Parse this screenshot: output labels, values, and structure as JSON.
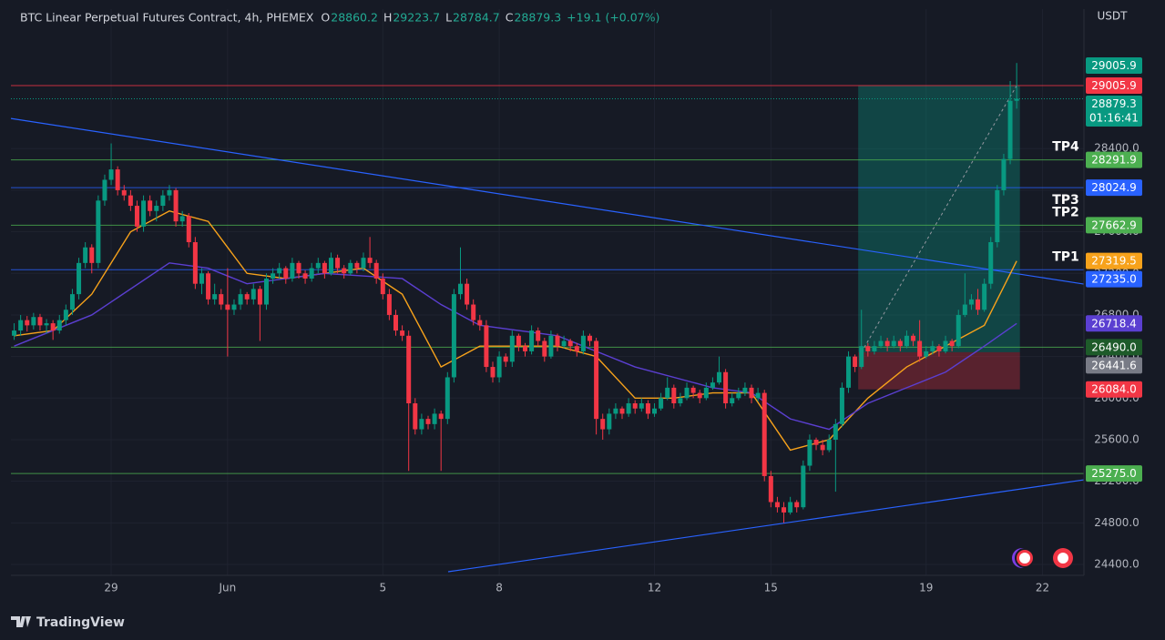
{
  "chart_data": {
    "type": "candlestick",
    "title": "BTC Linear Perpetual Futures Contract, 4h, PHEMEX",
    "ohlc_labels": [
      "O",
      "H",
      "L",
      "C"
    ],
    "change_label": "+19.1 (+0.07%)",
    "currency": "USDT",
    "countdown": "01:16:41",
    "brand": "TradingView",
    "up_color": "#089981",
    "down_color": "#f23645",
    "grid": true,
    "xlim": [
      -0.5,
      165.4
    ],
    "xticks": [
      {
        "value": 15,
        "label": "29"
      },
      {
        "value": 33,
        "label": "Jun"
      },
      {
        "value": 57,
        "label": "5"
      },
      {
        "value": 75,
        "label": "8"
      },
      {
        "value": 99,
        "label": "12"
      },
      {
        "value": 117,
        "label": "15"
      },
      {
        "value": 141,
        "label": "19"
      },
      {
        "value": 159,
        "label": "22"
      }
    ],
    "ylim": [
      24295,
      29742
    ],
    "yticks": [
      {
        "value": 24400,
        "label": "24400.0"
      },
      {
        "value": 24800,
        "label": "24800.0"
      },
      {
        "value": 25200,
        "label": "25200.0"
      },
      {
        "value": 25600,
        "label": "25600.0"
      },
      {
        "value": 26000,
        "label": "26000.0"
      },
      {
        "value": 26400,
        "label": "26400.0"
      },
      {
        "value": 26800,
        "label": "26800.0"
      },
      {
        "value": 27200,
        "label": "27200.0"
      },
      {
        "value": 27600,
        "label": "27600.0"
      },
      {
        "value": 28000,
        "label": "28000.0"
      },
      {
        "value": 28400,
        "label": "28400.0"
      }
    ],
    "candles": [
      [
        26600,
        26720,
        26560,
        26650
      ],
      [
        26650,
        26800,
        26600,
        26750
      ],
      [
        26750,
        26790,
        26640,
        26700
      ],
      [
        26700,
        26820,
        26660,
        26780
      ],
      [
        26780,
        26810,
        26650,
        26700
      ],
      [
        26700,
        26760,
        26620,
        26720
      ],
      [
        26720,
        26750,
        26560,
        26650
      ],
      [
        26650,
        26800,
        26620,
        26750
      ],
      [
        26750,
        26900,
        26700,
        26850
      ],
      [
        26850,
        27050,
        26800,
        27000
      ],
      [
        27000,
        27350,
        26950,
        27300
      ],
      [
        27300,
        27500,
        27250,
        27450
      ],
      [
        27450,
        27480,
        27200,
        27300
      ],
      [
        27300,
        27950,
        27250,
        27900
      ],
      [
        27900,
        28150,
        27850,
        28100
      ],
      [
        28100,
        28450,
        28050,
        28200
      ],
      [
        28200,
        28230,
        27950,
        28000
      ],
      [
        28000,
        28050,
        27900,
        27950
      ],
      [
        27950,
        28000,
        27800,
        27850
      ],
      [
        27850,
        27900,
        27600,
        27650
      ],
      [
        27650,
        27950,
        27600,
        27900
      ],
      [
        27900,
        27950,
        27750,
        27800
      ],
      [
        27800,
        27900,
        27700,
        27850
      ],
      [
        27850,
        28000,
        27800,
        27950
      ],
      [
        27950,
        28050,
        27900,
        28000
      ],
      [
        28000,
        28020,
        27650,
        27700
      ],
      [
        27700,
        27800,
        27650,
        27750
      ],
      [
        27750,
        27780,
        27450,
        27500
      ],
      [
        27500,
        27550,
        27050,
        27100
      ],
      [
        27100,
        27250,
        27000,
        27200
      ],
      [
        27200,
        27220,
        26900,
        26950
      ],
      [
        26950,
        27100,
        26900,
        27000
      ],
      [
        27000,
        27050,
        26850,
        26900
      ],
      [
        26900,
        27250,
        26400,
        26850
      ],
      [
        26850,
        26950,
        26800,
        26900
      ],
      [
        26900,
        27050,
        26850,
        27000
      ],
      [
        27000,
        27020,
        26900,
        26950
      ],
      [
        26950,
        27100,
        26900,
        27050
      ],
      [
        27050,
        27080,
        26550,
        26900
      ],
      [
        26900,
        27200,
        26850,
        27150
      ],
      [
        27150,
        27250,
        27100,
        27200
      ],
      [
        27200,
        27300,
        27150,
        27250
      ],
      [
        27250,
        27270,
        27100,
        27150
      ],
      [
        27150,
        27350,
        27120,
        27300
      ],
      [
        27300,
        27320,
        27150,
        27200
      ],
      [
        27200,
        27230,
        27100,
        27150
      ],
      [
        27150,
        27300,
        27120,
        27250
      ],
      [
        27250,
        27350,
        27200,
        27300
      ],
      [
        27300,
        27320,
        27150,
        27200
      ],
      [
        27200,
        27400,
        27180,
        27350
      ],
      [
        27350,
        27380,
        27200,
        27250
      ],
      [
        27250,
        27280,
        27150,
        27200
      ],
      [
        27200,
        27330,
        27180,
        27300
      ],
      [
        27300,
        27320,
        27200,
        27250
      ],
      [
        27250,
        27400,
        27220,
        27350
      ],
      [
        27350,
        27550,
        27250,
        27300
      ],
      [
        27300,
        27330,
        27100,
        27150
      ],
      [
        27150,
        27200,
        26950,
        27000
      ],
      [
        27000,
        27050,
        26750,
        26800
      ],
      [
        26800,
        26850,
        26600,
        26650
      ],
      [
        26650,
        26700,
        26550,
        26600
      ],
      [
        26600,
        26650,
        25300,
        25950
      ],
      [
        25950,
        26000,
        25650,
        25700
      ],
      [
        25700,
        25850,
        25650,
        25800
      ],
      [
        25800,
        25830,
        25700,
        25750
      ],
      [
        25750,
        25900,
        25700,
        25850
      ],
      [
        25850,
        25880,
        25300,
        25800
      ],
      [
        25800,
        26250,
        25750,
        26200
      ],
      [
        26200,
        27050,
        26150,
        27000
      ],
      [
        27000,
        27450,
        26950,
        27100
      ],
      [
        27100,
        27150,
        26850,
        26900
      ],
      [
        26900,
        26950,
        26700,
        26750
      ],
      [
        26750,
        26800,
        26650,
        26700
      ],
      [
        26700,
        26750,
        26250,
        26300
      ],
      [
        26300,
        26350,
        26150,
        26200
      ],
      [
        26200,
        26450,
        26150,
        26400
      ],
      [
        26400,
        26430,
        26300,
        26350
      ],
      [
        26350,
        26650,
        26300,
        26600
      ],
      [
        26600,
        26620,
        26450,
        26500
      ],
      [
        26500,
        26530,
        26400,
        26450
      ],
      [
        26450,
        26700,
        26420,
        26650
      ],
      [
        26650,
        26680,
        26500,
        26550
      ],
      [
        26550,
        26580,
        26350,
        26400
      ],
      [
        26400,
        26650,
        26380,
        26600
      ],
      [
        26600,
        26620,
        26450,
        26500
      ],
      [
        26500,
        26600,
        26480,
        26550
      ],
      [
        26550,
        26570,
        26450,
        26500
      ],
      [
        26500,
        26530,
        26400,
        26450
      ],
      [
        26450,
        26650,
        26420,
        26600
      ],
      [
        26600,
        26620,
        26500,
        26550
      ],
      [
        26550,
        26580,
        25650,
        25800
      ],
      [
        25800,
        25850,
        25600,
        25700
      ],
      [
        25700,
        25900,
        25650,
        25850
      ],
      [
        25850,
        25950,
        25800,
        25900
      ],
      [
        25900,
        25920,
        25800,
        25850
      ],
      [
        25850,
        26000,
        25820,
        25950
      ],
      [
        25950,
        25980,
        25850,
        25900
      ],
      [
        25900,
        26000,
        25870,
        25950
      ],
      [
        25950,
        25980,
        25800,
        25850
      ],
      [
        25850,
        25950,
        25820,
        25900
      ],
      [
        25900,
        26050,
        25880,
        26000
      ],
      [
        26000,
        26200,
        25980,
        26100
      ],
      [
        26100,
        26130,
        25900,
        25950
      ],
      [
        25950,
        26050,
        25920,
        26000
      ],
      [
        26000,
        26150,
        25980,
        26100
      ],
      [
        26100,
        26120,
        26000,
        26050
      ],
      [
        26050,
        26080,
        25950,
        26000
      ],
      [
        26000,
        26150,
        25980,
        26100
      ],
      [
        26100,
        26200,
        26080,
        26150
      ],
      [
        26150,
        26400,
        26130,
        26250
      ],
      [
        26250,
        26280,
        25900,
        25950
      ],
      [
        25950,
        26050,
        25920,
        26000
      ],
      [
        26000,
        26100,
        25980,
        26050
      ],
      [
        26050,
        26150,
        26020,
        26100
      ],
      [
        26100,
        26130,
        25950,
        26000
      ],
      [
        26000,
        26100,
        25970,
        26050
      ],
      [
        26050,
        26080,
        25200,
        25250
      ],
      [
        25250,
        25300,
        24950,
        25000
      ],
      [
        25000,
        25050,
        24900,
        24950
      ],
      [
        24950,
        25000,
        24800,
        24900
      ],
      [
        24900,
        25050,
        24880,
        25000
      ],
      [
        25000,
        25020,
        24900,
        24950
      ],
      [
        24950,
        25400,
        24930,
        25350
      ],
      [
        25350,
        25650,
        25300,
        25600
      ],
      [
        25600,
        25620,
        25500,
        25550
      ],
      [
        25550,
        25600,
        25450,
        25500
      ],
      [
        25500,
        25650,
        25480,
        25600
      ],
      [
        25600,
        25800,
        25100,
        25750
      ],
      [
        25750,
        26150,
        25720,
        26100
      ],
      [
        26100,
        26450,
        26050,
        26400
      ],
      [
        26400,
        26420,
        26250,
        26300
      ],
      [
        26300,
        26850,
        26280,
        26500
      ],
      [
        26500,
        26530,
        26400,
        26450
      ],
      [
        26450,
        26550,
        26420,
        26500
      ],
      [
        26500,
        26600,
        26480,
        26550
      ],
      [
        26550,
        26580,
        26450,
        26500
      ],
      [
        26500,
        26600,
        26480,
        26550
      ],
      [
        26550,
        26570,
        26450,
        26500
      ],
      [
        26500,
        26650,
        26480,
        26600
      ],
      [
        26600,
        26620,
        26500,
        26550
      ],
      [
        26550,
        26750,
        26350,
        26400
      ],
      [
        26400,
        26500,
        26380,
        26450
      ],
      [
        26450,
        26550,
        26420,
        26500
      ],
      [
        26500,
        26520,
        26400,
        26450
      ],
      [
        26450,
        26600,
        26430,
        26550
      ],
      [
        26550,
        26570,
        26450,
        26500
      ],
      [
        26500,
        26850,
        26480,
        26800
      ],
      [
        26800,
        27200,
        26780,
        26900
      ],
      [
        26900,
        27000,
        26850,
        26950
      ],
      [
        26950,
        27050,
        26800,
        26850
      ],
      [
        26850,
        27150,
        26830,
        27100
      ],
      [
        27100,
        27550,
        27050,
        27500
      ],
      [
        27500,
        28050,
        27450,
        28000
      ],
      [
        28000,
        28350,
        27950,
        28300
      ],
      [
        28300,
        29050,
        28250,
        28860.2
      ],
      [
        28860.2,
        29223.7,
        28784.7,
        28879.3
      ]
    ],
    "last_price_color": "#089981",
    "moving_averages": [
      {
        "color": "#f7a21b",
        "x": [
          0,
          6,
          12,
          18,
          24,
          30,
          36,
          42,
          48,
          54,
          60,
          66,
          72,
          78,
          84,
          90,
          96,
          102,
          108,
          114,
          120,
          126,
          132,
          138,
          144,
          150,
          155
        ],
        "values": [
          26600,
          26650,
          27000,
          27600,
          27800,
          27700,
          27200,
          27150,
          27200,
          27250,
          27000,
          26300,
          26500,
          26500,
          26500,
          26400,
          26000,
          26000,
          26050,
          26050,
          25500,
          25600,
          26000,
          26300,
          26500,
          26700,
          27319.5
        ]
      },
      {
        "color": "#5b3fd1",
        "x": [
          0,
          12,
          24,
          30,
          36,
          48,
          60,
          66,
          72,
          84,
          96,
          108,
          114,
          120,
          126,
          132,
          138,
          144,
          150,
          155
        ],
        "values": [
          26500,
          26800,
          27300,
          27250,
          27100,
          27200,
          27150,
          26900,
          26700,
          26600,
          26300,
          26100,
          26050,
          25800,
          25700,
          25950,
          26100,
          26250,
          26500,
          26718.4
        ]
      }
    ],
    "levels": [
      {
        "value": 29005.9,
        "color": "#f23645"
      },
      {
        "value": 28291.9,
        "color": "#4caf50",
        "tag": "TP4",
        "tag_side": "above"
      },
      {
        "value": 28024.9,
        "color": "#2962ff",
        "tag": "TP3",
        "tag_side": "below"
      },
      {
        "value": 27662.9,
        "color": "#4caf50",
        "tag": "TP2",
        "tag_side": "above"
      },
      {
        "value": 27235,
        "label": "27235.0",
        "color": "#2962ff",
        "tag": "TP1",
        "tag_side": "above"
      },
      {
        "value": 26490,
        "label": "26490.0",
        "color": "#4caf50",
        "label_color": "#1e5b2a"
      },
      {
        "value": 25275,
        "label": "25275.0",
        "color": "#4caf50"
      }
    ],
    "trendlines": [
      {
        "color": "#2962ff",
        "x": [
          -0.5,
          165.4
        ],
        "y": [
          28690,
          27097
        ]
      },
      {
        "color": "#2962ff",
        "x": [
          67.1,
          165.4
        ],
        "y": [
          24330,
          25214
        ]
      }
    ],
    "position": {
      "start": 131,
      "end": 155,
      "target": 29005.9,
      "target_color": "#089981",
      "entry": 26441.6,
      "entry_color": "#787b86",
      "stop": 26084,
      "stop_label": "26084.0",
      "stop_color": "#f23645"
    }
  }
}
